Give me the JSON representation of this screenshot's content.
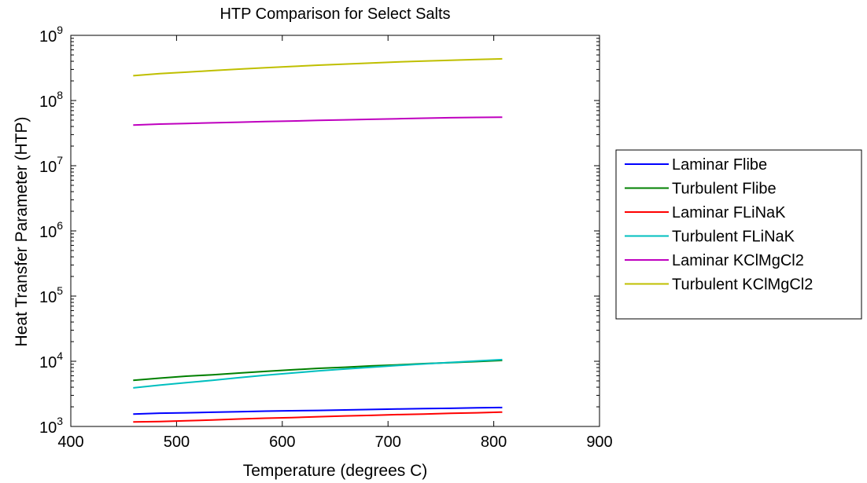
{
  "chart_data": {
    "type": "line",
    "title": "HTP Comparison for Select Salts",
    "xlabel": "Temperature (degrees C)",
    "ylabel": "Heat Transfer Parameter (HTP)",
    "xlim": [
      400,
      900
    ],
    "ylim": [
      1000,
      1000000000
    ],
    "yscale": "log",
    "xticks": [
      400,
      500,
      600,
      700,
      800,
      900
    ],
    "yticks": [
      {
        "base": "10",
        "exp": "3",
        "value": 1000
      },
      {
        "base": "10",
        "exp": "4",
        "value": 10000
      },
      {
        "base": "10",
        "exp": "5",
        "value": 100000
      },
      {
        "base": "10",
        "exp": "6",
        "value": 1000000
      },
      {
        "base": "10",
        "exp": "7",
        "value": 10000000
      },
      {
        "base": "10",
        "exp": "8",
        "value": 100000000
      },
      {
        "base": "10",
        "exp": "9",
        "value": 1000000000
      }
    ],
    "grid": false,
    "legend_position": "outside-right",
    "x": [
      459,
      484,
      509,
      534,
      559,
      584,
      609,
      634,
      659,
      684,
      709,
      734,
      759,
      784,
      808
    ],
    "series": [
      {
        "name": "Laminar Flibe",
        "color": "#0000ff",
        "values": [
          1550,
          1600,
          1620,
          1650,
          1680,
          1720,
          1740,
          1760,
          1790,
          1820,
          1850,
          1880,
          1900,
          1930,
          1950
        ]
      },
      {
        "name": "Turbulent Flibe",
        "color": "#008000",
        "values": [
          5100,
          5500,
          5900,
          6200,
          6600,
          7000,
          7400,
          7800,
          8100,
          8500,
          8800,
          9200,
          9500,
          9900,
          10300
        ]
      },
      {
        "name": "Laminar FLiNaK",
        "color": "#ff0000",
        "values": [
          1170,
          1190,
          1220,
          1260,
          1300,
          1340,
          1370,
          1410,
          1450,
          1480,
          1520,
          1550,
          1590,
          1620,
          1660
        ]
      },
      {
        "name": "Turbulent FLiNaK",
        "color": "#00bfbf",
        "values": [
          3900,
          4300,
          4700,
          5100,
          5600,
          6100,
          6600,
          7100,
          7600,
          8100,
          8600,
          9100,
          9600,
          10100,
          10600
        ]
      },
      {
        "name": "Laminar KClMgCl2",
        "color": "#bf00bf",
        "values": [
          42000000,
          43500000,
          44500000,
          45500000,
          46500000,
          47500000,
          48500000,
          49500000,
          50500000,
          51500000,
          52500000,
          53500000,
          54500000,
          55000000,
          55500000
        ]
      },
      {
        "name": "Turbulent KClMgCl2",
        "color": "#bfbf00",
        "values": [
          240000000,
          258000000,
          272000000,
          288000000,
          303000000,
          318000000,
          333000000,
          348000000,
          362000000,
          376000000,
          390000000,
          402000000,
          414000000,
          425000000,
          436000000
        ]
      }
    ]
  }
}
